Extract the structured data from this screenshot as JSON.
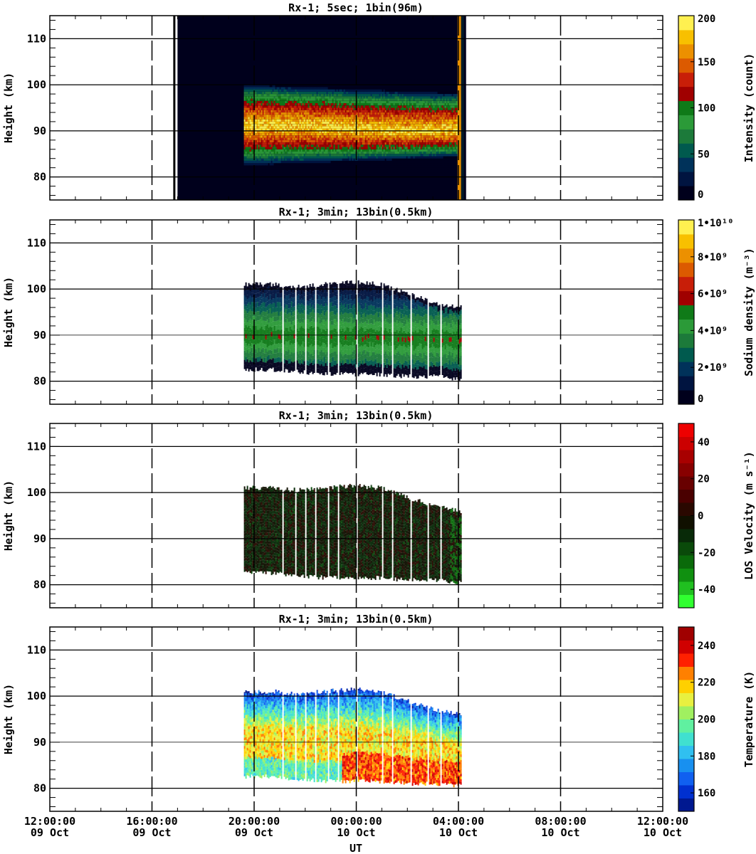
{
  "chart_data": {
    "type": "heatmap",
    "xlabel": "UT",
    "x_ticks": [
      {
        "t": 0,
        "time": "12:00:00",
        "date": "09 Oct"
      },
      {
        "t": 4,
        "time": "16:00:00",
        "date": "09 Oct"
      },
      {
        "t": 8,
        "time": "20:00:00",
        "date": "09 Oct"
      },
      {
        "t": 12,
        "time": "00:00:00",
        "date": "10 Oct"
      },
      {
        "t": 16,
        "time": "04:00:00",
        "date": "10 Oct"
      },
      {
        "t": 20,
        "time": "08:00:00",
        "date": "10 Oct"
      },
      {
        "t": 24,
        "time": "12:00:00",
        "date": "10 Oct"
      }
    ],
    "y_ticks": [
      80,
      90,
      100,
      110
    ],
    "panels": [
      {
        "id": "intensity",
        "title": "Rx-1;  5sec; 1bin(96m)",
        "ylabel": "Height (km)",
        "ylim": [
          75,
          115
        ],
        "colorbar_label": "Intensity (count)",
        "colorbar_ticks": [
          "0",
          "50",
          "100",
          "150",
          "200"
        ],
        "colorbar_range": [
          0,
          200
        ],
        "colors": [
          "#00001c",
          "#001440",
          "#00325a",
          "#005a4e",
          "#1c7a3a",
          "#2b9a38",
          "#0f7a18",
          "#a00000",
          "#c81e08",
          "#dc5a00",
          "#ec9000",
          "#f8c000",
          "#fff050"
        ],
        "observation_start_hour": 5.0,
        "data_start_hour": 7.6,
        "observation_end_hour": 16.3,
        "layer": {
          "peak_km": [
            91,
            91,
            90.5,
            90,
            89.8,
            90
          ],
          "upper_edge_km": 100,
          "lower_edge_km": 82
        }
      },
      {
        "id": "sodium",
        "title": "Rx-1; 3min; 13bin(0.5km)",
        "ylabel": "Height (km)",
        "ylim": [
          75,
          115
        ],
        "colorbar_label": "Sodium density (m⁻³)",
        "colorbar_ticks": [
          "0",
          "2•10⁹",
          "4•10⁹",
          "6•10⁹",
          "8•10⁹",
          "1•10¹⁰"
        ],
        "colorbar_range": [
          0,
          10000000000
        ],
        "colors": [
          "#00001c",
          "#001440",
          "#00325a",
          "#005a4e",
          "#1c7a3a",
          "#2b9a38",
          "#0f7a18",
          "#a00000",
          "#c81e08",
          "#dc5a00",
          "#ec9000",
          "#f8c000",
          "#fff050"
        ],
        "data_start_hour": 7.6,
        "data_end_hour": 16.1,
        "top_km": [
          101,
          101,
          100.5,
          101,
          101.5,
          101,
          99,
          97,
          96
        ],
        "bottom_km": [
          82.5,
          82.5,
          82,
          81.5,
          81.5,
          81.5,
          81,
          81,
          80.5
        ]
      },
      {
        "id": "velocity",
        "title": "Rx-1; 3min; 13bin(0.5km)",
        "ylabel": "Height (km)",
        "ylim": [
          75,
          115
        ],
        "colorbar_label": "LOS Velocity (m s⁻¹)",
        "colorbar_ticks": [
          "-40",
          "-20",
          "0",
          "20",
          "40"
        ],
        "colorbar_range": [
          -50,
          50
        ],
        "colors": [
          "#30ff30",
          "#20c020",
          "#109010",
          "#0a6a0a",
          "#0a4a0a",
          "#082a08",
          "#101000",
          "#2a0800",
          "#4a0000",
          "#680000",
          "#880000",
          "#a80000",
          "#cc0000",
          "#ee0000"
        ],
        "data_start_hour": 7.6,
        "data_end_hour": 16.1,
        "top_km": [
          101,
          101,
          100.5,
          101,
          101.5,
          101,
          99,
          97,
          96
        ],
        "bottom_km": [
          82.5,
          82.5,
          82,
          81.5,
          81.5,
          81.5,
          81,
          81,
          80.5
        ]
      },
      {
        "id": "temperature",
        "title": "Rx-1; 3min; 13bin(0.5km)",
        "ylabel": "Height (km)",
        "ylim": [
          75,
          115
        ],
        "colorbar_label": "Temperature (K)",
        "colorbar_ticks": [
          "160",
          "180",
          "200",
          "220",
          "240"
        ],
        "colorbar_range": [
          150,
          250
        ],
        "colors": [
          "#001890",
          "#0030d0",
          "#1060f0",
          "#1890f0",
          "#30c0f0",
          "#40e0d0",
          "#60f0a0",
          "#a0f060",
          "#e8f040",
          "#ffd000",
          "#ff8000",
          "#ff2000",
          "#d00000",
          "#a00000"
        ],
        "data_start_hour": 7.6,
        "data_end_hour": 16.1,
        "top_km": [
          101,
          101,
          100.5,
          101,
          101.5,
          101,
          99,
          97,
          96
        ],
        "bottom_km": [
          82.5,
          82.5,
          82,
          81.5,
          81.5,
          81.5,
          81,
          81,
          80.5
        ]
      }
    ]
  }
}
